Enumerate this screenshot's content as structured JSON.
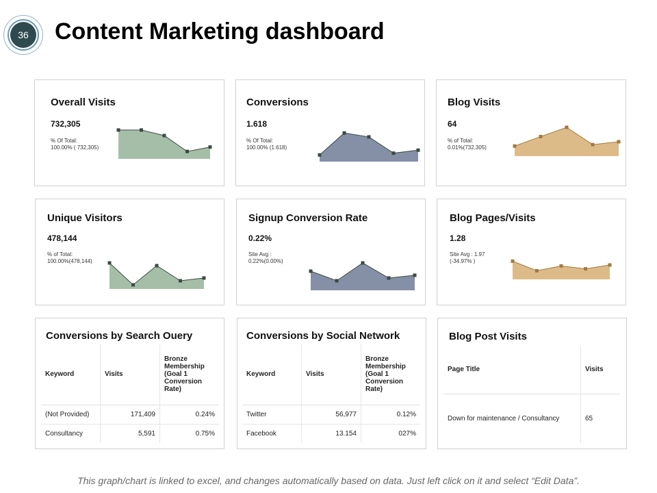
{
  "slide": {
    "number": "36",
    "title": "Content Marketing dashboard"
  },
  "colors": {
    "green": "#a5bea8",
    "blue": "#858fa6",
    "tan": "#ddbb88",
    "marker": "#3c4a43",
    "marker_tan": "#a07a3f"
  },
  "cards": {
    "overall_visits": {
      "title": "Overall Visits",
      "value": "732,305",
      "sub1": "% Of Total:",
      "sub2": "100.00% ( 732,305)",
      "spark": [
        0.78,
        0.78,
        0.63,
        0.2,
        0.32
      ]
    },
    "conversions": {
      "title": "Conversions",
      "value": "1.618",
      "sub1": "% Of Total:",
      "sub2": "100.00% (1.618)",
      "spark": [
        0.22,
        0.95,
        0.82,
        0.28,
        0.38
      ]
    },
    "blog_visits": {
      "title": "Blog Visits",
      "value": "64",
      "sub1": "% of Total:",
      "sub2": "0.01%(732,305)",
      "spark": [
        0.35,
        0.68,
        1.0,
        0.4,
        0.5
      ]
    },
    "unique_visitors": {
      "title": "Unique Visitors",
      "value": "478,144",
      "sub1": "% of Total:",
      "sub2": "100.00%(478,144)",
      "spark": [
        0.95,
        0.15,
        0.85,
        0.3,
        0.4
      ]
    },
    "signup_conversion_rate": {
      "title": "Signup Conversion Rate",
      "value": "0.22%",
      "sub1": "Site Avg :",
      "sub2": "0.22%(0.00%)",
      "spark": [
        0.7,
        0.35,
        1.0,
        0.45,
        0.55
      ]
    },
    "blog_pages_visits": {
      "title": "Blog  Pages/Visits",
      "value": "1.28",
      "sub1": "Site Avg : 1.97",
      "sub2": "(-34.97% )",
      "spark": [
        0.95,
        0.45,
        0.7,
        0.55,
        0.75
      ]
    }
  },
  "search_query": {
    "title": "Conversions by Search Ouery",
    "headers": [
      "Keyword",
      "Visits",
      "Bronze Membership (Goal 1 Conversion Rate)"
    ],
    "rows": [
      {
        "keyword": "(Not Provided)",
        "visits": "171,409",
        "rate": "0.24%"
      },
      {
        "keyword": "Consultancy",
        "visits": "5,591",
        "rate": "0.75%"
      }
    ]
  },
  "social_network": {
    "title": "Conversions by Social Network",
    "headers": [
      "Keyword",
      "Visits",
      "Bronze Membership (Goal 1 Conversion Rate)"
    ],
    "rows": [
      {
        "keyword": "Twitter",
        "visits": "56,977",
        "rate": "0.12%"
      },
      {
        "keyword": "Facebook",
        "visits": "13.154",
        "rate": "027%"
      }
    ]
  },
  "blog_post_visits": {
    "title": "Blog Post Visits",
    "headers": [
      "Page Title",
      "Visits"
    ],
    "rows": [
      {
        "page": "Down for maintenance / Consultancy",
        "visits": "65"
      }
    ]
  },
  "footer": "This graph/chart is linked to excel, and changes automatically based on data. Just left click on it and select “Edit Data”."
}
